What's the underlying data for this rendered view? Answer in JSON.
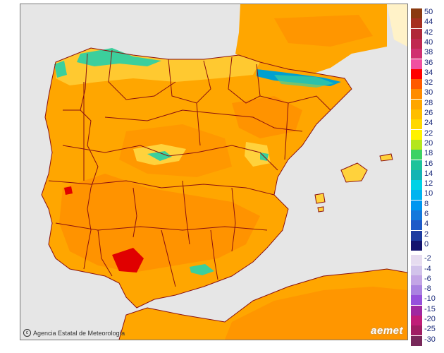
{
  "map": {
    "credit": "Agencia Estatal de Meteorología",
    "logo": "aemet",
    "colors": {
      "sea": "#e6e6e6",
      "land_base": "#ffa600",
      "land_warm": "#ff8c00",
      "land_cool": "#ffd23c",
      "mountain": "#3ccf9c",
      "mountain_cold": "#00a0d0",
      "hot_spot": "#e00000",
      "border": "#8a1010",
      "frame": "#777777"
    },
    "icons": {
      "credit_icon": "copyright-circle-icon"
    }
  },
  "legend": [
    {
      "label": "50",
      "color": "#8b3a10"
    },
    {
      "label": "44",
      "color": "#a63020"
    },
    {
      "label": "42",
      "color": "#b02838"
    },
    {
      "label": "40",
      "color": "#c02850"
    },
    {
      "label": "38",
      "color": "#d03070"
    },
    {
      "label": "36",
      "color": "#f050a0"
    },
    {
      "label": "34",
      "color": "#ff0000"
    },
    {
      "label": "32",
      "color": "#ff5a00"
    },
    {
      "label": "30",
      "color": "#ff8c00"
    },
    {
      "label": "28",
      "color": "#ffa600"
    },
    {
      "label": "26",
      "color": "#ffbe00"
    },
    {
      "label": "24",
      "color": "#ffd800"
    },
    {
      "label": "22",
      "color": "#fff200"
    },
    {
      "label": "20",
      "color": "#b4e61e"
    },
    {
      "label": "18",
      "color": "#3cd264"
    },
    {
      "label": "16",
      "color": "#1ec39b"
    },
    {
      "label": "14",
      "color": "#14b4b4"
    },
    {
      "label": "12",
      "color": "#00d2e6"
    },
    {
      "label": "10",
      "color": "#00b4f0"
    },
    {
      "label": "8",
      "color": "#0096f0"
    },
    {
      "label": "6",
      "color": "#1478dc"
    },
    {
      "label": "4",
      "color": "#1e5ac8"
    },
    {
      "label": "2",
      "color": "#1e3ca0"
    },
    {
      "label": "0",
      "color": "#14146e"
    },
    {
      "label": "-2",
      "color": "#e6dcf0"
    },
    {
      "label": "-4",
      "color": "#d2c3eb"
    },
    {
      "label": "-6",
      "color": "#c3a5e6"
    },
    {
      "label": "-8",
      "color": "#aa82e1"
    },
    {
      "label": "-10",
      "color": "#9650dc"
    },
    {
      "label": "-15",
      "color": "#a028a0"
    },
    {
      "label": "-20",
      "color": "#c01e78"
    },
    {
      "label": "-25",
      "color": "#a01e64"
    },
    {
      "label": "-30",
      "color": "#78285a"
    }
  ]
}
